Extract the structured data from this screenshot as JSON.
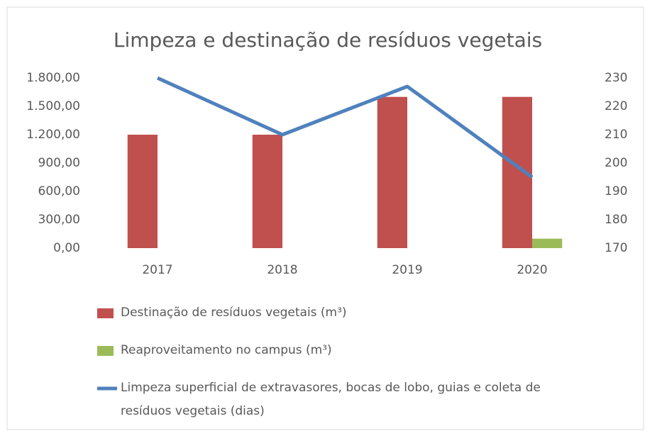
{
  "chart_data": {
    "type": "bar",
    "title": "Limpeza e destinação de resíduos vegetais",
    "categories": [
      "2017",
      "2018",
      "2019",
      "2020"
    ],
    "series": [
      {
        "name": "Destinação de resíduos vegetais (m³)",
        "type": "bar",
        "color": "#c0504d",
        "values": [
          1200,
          1200,
          1600,
          1600
        ]
      },
      {
        "name": "Reaproveitamento no campus (m³)",
        "type": "bar",
        "color": "#9bbb59",
        "values": [
          0,
          0,
          0,
          100
        ]
      },
      {
        "name": "Limpeza superficial de extravasores, bocas de lobo, guias e coleta de resíduos vegetais (dias)",
        "type": "line",
        "axis": "y2",
        "color": "#4f81bd",
        "values": [
          230,
          210,
          227,
          195
        ]
      }
    ],
    "ylim": [
      0,
      1800
    ],
    "yticks": [
      {
        "value": 0,
        "label": "0,00"
      },
      {
        "value": 300,
        "label": "300,00"
      },
      {
        "value": 600,
        "label": "600,00"
      },
      {
        "value": 900,
        "label": "900,00"
      },
      {
        "value": 1200,
        "label": "1.200,00"
      },
      {
        "value": 1500,
        "label": "1.500,00"
      },
      {
        "value": 1800,
        "label": "1.800,00"
      }
    ],
    "y2lim": [
      170,
      230
    ],
    "y2ticks": [
      170,
      180,
      190,
      200,
      210,
      220,
      230
    ],
    "legend": "bottom"
  }
}
